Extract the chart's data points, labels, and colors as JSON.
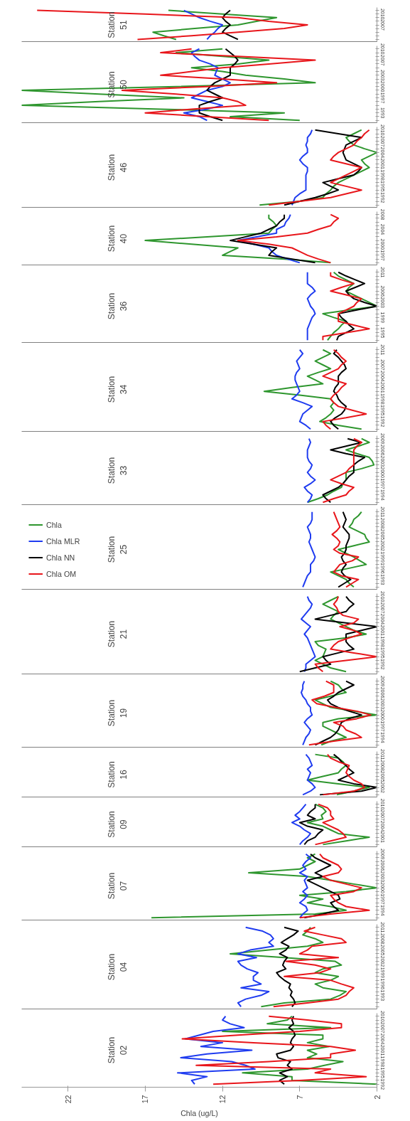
{
  "chart_data": [
    {
      "type": "line",
      "orientation": "horizontal",
      "annotations": [
        "Station 51"
      ],
      "xlim": [
        25,
        2
      ],
      "tick_labels": "y",
      "categories": [
        null,
        "2010",
        null,
        null,
        "2007",
        null,
        null,
        null,
        null
      ],
      "series": [
        {
          "color": "#2e962e",
          "values": [
            15.5,
            12.0,
            8.5,
            9.8,
            11.0,
            13.8,
            16.5,
            15.8,
            15.0
          ]
        },
        {
          "color": "#1f3cf0",
          "values": [
            14.5,
            14.0,
            13.5,
            12.8,
            12.0,
            12.3,
            12.5,
            12.8,
            13.0
          ]
        },
        {
          "color": "#000000",
          "values": [
            11.5,
            11.8,
            12.0,
            11.8,
            11.5,
            11.8,
            12.0,
            11.5,
            11.0
          ]
        },
        {
          "color": "#e8161b",
          "values": [
            24.0,
            17.0,
            11.0,
            9.0,
            6.5,
            8.0,
            11.0,
            14.0,
            17.5
          ]
        }
      ]
    },
    {
      "type": "line",
      "orientation": "horizontal",
      "annotations": [
        "Station 50"
      ],
      "xlim": [
        25,
        2
      ],
      "tick_labels": "y",
      "categories": [
        "2010",
        null,
        null,
        "2007",
        null,
        null,
        null,
        "2003",
        null,
        null,
        "2000",
        null,
        null,
        "1997",
        null,
        null,
        null,
        "1993",
        null,
        null
      ],
      "series": [
        {
          "color": "#2e962e",
          "values": [
            12.0,
            15.0,
            12.0,
            9.0,
            11.0,
            14.0,
            12.0,
            10.5,
            8.0,
            6.0,
            15.0,
            25.0,
            20.0,
            14.5,
            20.0,
            25.0,
            16.0,
            8.0,
            11.5,
            7.0
          ]
        },
        {
          "color": "#1f3cf0",
          "values": [
            13.5,
            14.0,
            13.8,
            13.5,
            12.8,
            12.3,
            12.4,
            12.5,
            12.0,
            11.5,
            12.0,
            13.0,
            13.5,
            14.0,
            13.0,
            12.0,
            13.0,
            14.5,
            13.5,
            13.0
          ]
        },
        {
          "color": "#000000",
          "values": [
            11.8,
            11.5,
            11.2,
            11.0,
            11.2,
            11.5,
            11.5,
            11.5,
            12.0,
            12.5,
            12.8,
            13.0,
            12.5,
            12.0,
            12.8,
            13.5,
            13.5,
            13.5,
            12.8,
            12.0
          ]
        },
        {
          "color": "#e8161b",
          "values": [
            14.0,
            16.0,
            11.0,
            6.0,
            9.0,
            12.0,
            14.0,
            16.0,
            12.0,
            8.5,
            13.0,
            18.5,
            15.0,
            12.0,
            11.0,
            10.5,
            14.0,
            17.0,
            13.0,
            9.0
          ]
        }
      ]
    },
    {
      "type": "line",
      "orientation": "horizontal",
      "annotations": [
        "Station 46"
      ],
      "xlim": [
        25,
        2
      ],
      "tick_labels": "y",
      "categories": [
        "2010",
        null,
        null,
        "2007",
        null,
        null,
        "2004",
        null,
        null,
        "2001",
        null,
        null,
        "1998",
        null,
        null,
        "1995",
        null,
        null,
        "1992",
        null,
        null
      ],
      "series": [
        {
          "color": "#2e962e",
          "values": [
            3.0,
            3.5,
            4.0,
            3.8,
            3.5,
            2.8,
            2.0,
            2.5,
            3.0,
            2.8,
            2.5,
            3.0,
            3.5,
            4.0,
            4.5,
            4.8,
            5.0,
            5.3,
            5.5,
            7.0,
            9.6
          ]
        },
        {
          "color": "#1f3cf0",
          "values": [
            6.2,
            6.3,
            6.5,
            6.5,
            6.6,
            6.5,
            6.5,
            6.8,
            7.0,
            6.8,
            6.5,
            6.5,
            6.6,
            6.6,
            6.6,
            6.6,
            6.6,
            7.0,
            7.3,
            7.4,
            7.5
          ]
        },
        {
          "color": "#000000",
          "values": [
            6.0,
            4.5,
            3.0,
            3.5,
            4.0,
            4.1,
            4.2,
            4.1,
            4.0,
            3.5,
            3.0,
            3.2,
            3.5,
            4.5,
            5.5,
            5.0,
            4.5,
            5.2,
            6.0,
            7.0,
            8.0
          ]
        },
        {
          "color": "#e8161b",
          "values": [
            2.5,
            2.8,
            3.0,
            3.3,
            3.5,
            4.0,
            4.5,
            4.8,
            5.0,
            4.0,
            3.0,
            3.5,
            4.0,
            4.5,
            5.0,
            4.0,
            3.0,
            4.0,
            5.0,
            7.0,
            9.0
          ]
        }
      ]
    },
    {
      "type": "line",
      "orientation": "horizontal",
      "annotations": [
        "Station 40"
      ],
      "xlim": [
        25,
        2
      ],
      "tick_labels": "y",
      "categories": [
        "2008",
        null,
        null,
        null,
        "2004",
        null,
        null,
        null,
        "2000",
        null,
        null,
        "1997",
        null,
        null
      ],
      "series": [
        {
          "color": "#2e962e",
          "values": [
            9.0,
            9.0,
            8.7,
            8.5,
            8.8,
            9.0,
            13.0,
            17.0,
            14.0,
            11.0,
            11.5,
            12.0,
            8.0,
            5.0
          ]
        },
        {
          "color": "#1f3cf0",
          "values": [
            7.6,
            7.7,
            7.9,
            8.0,
            8.5,
            8.5,
            9.8,
            11.0,
            10.0,
            9.0,
            8.8,
            8.5,
            7.8,
            7.0
          ]
        },
        {
          "color": "#000000",
          "values": [
            8.0,
            8.0,
            8.3,
            8.5,
            9.0,
            9.5,
            10.5,
            11.5,
            10.0,
            8.5,
            8.8,
            9.0,
            7.5,
            6.0
          ]
        },
        {
          "color": "#e8161b",
          "values": [
            5.0,
            4.5,
            4.8,
            5.0,
            5.8,
            6.5,
            8.5,
            11.0,
            9.0,
            7.5,
            7.0,
            6.5,
            5.8,
            5.0
          ]
        }
      ]
    },
    {
      "type": "line",
      "orientation": "horizontal",
      "annotations": [
        "Station 36"
      ],
      "xlim": [
        25,
        2
      ],
      "tick_labels": "y",
      "categories": [
        "2011",
        null,
        null,
        null,
        null,
        "2006",
        null,
        null,
        "2003",
        null,
        null,
        null,
        "1999",
        null,
        null,
        null,
        "1995",
        null,
        null
      ],
      "series": [
        {
          "color": "#2e962e",
          "values": [
            4.8,
            4.5,
            4.0,
            3.5,
            3.8,
            4.0,
            3.5,
            3.0,
            2.5,
            2.0,
            3.8,
            5.5,
            4.8,
            4.0,
            4.3,
            4.5,
            4.8,
            5.0,
            5.2
          ]
        },
        {
          "color": "#1f3cf0",
          "values": [
            6.5,
            6.5,
            6.5,
            6.5,
            6.2,
            6.0,
            6.3,
            6.5,
            6.4,
            6.3,
            6.1,
            6.0,
            6.2,
            6.3,
            6.4,
            6.5,
            6.5,
            6.5,
            6.5
          ]
        },
        {
          "color": "#000000",
          "values": [
            4.5,
            4.0,
            3.4,
            2.8,
            3.4,
            4.0,
            3.8,
            3.5,
            2.8,
            2.0,
            3.3,
            4.5,
            4.3,
            4.0,
            3.8,
            3.5,
            4.0,
            4.5,
            4.6
          ]
        },
        {
          "color": "#e8161b",
          "values": [
            5.0,
            5.0,
            4.3,
            3.5,
            4.3,
            5.0,
            4.0,
            3.0,
            3.3,
            3.5,
            4.0,
            4.5,
            4.5,
            4.5,
            3.5,
            2.5,
            4.0,
            5.5,
            5.5
          ]
        }
      ]
    },
    {
      "type": "line",
      "orientation": "horizontal",
      "annotations": [
        "Station 34"
      ],
      "xlim": [
        25,
        2
      ],
      "tick_labels": "y",
      "categories": [
        "2011",
        null,
        null,
        null,
        "2007",
        null,
        null,
        "2004",
        null,
        null,
        "2001",
        null,
        null,
        "1998",
        null,
        null,
        "1995",
        null,
        null,
        "1992",
        null,
        null
      ],
      "series": [
        {
          "color": "#2e962e",
          "values": [
            5.5,
            5.0,
            5.5,
            6.0,
            5.5,
            5.0,
            5.8,
            6.5,
            6.0,
            5.5,
            7.5,
            9.3,
            7.0,
            5.0,
            4.8,
            5.0,
            4.8,
            5.0,
            5.3,
            5.7,
            4.5,
            3.0
          ]
        },
        {
          "color": "#1f3cf0",
          "values": [
            7.0,
            6.8,
            7.0,
            7.2,
            7.1,
            7.0,
            7.2,
            7.3,
            7.3,
            7.2,
            7.1,
            7.0,
            7.2,
            7.5,
            6.8,
            6.2,
            6.5,
            6.8,
            6.9,
            7.0,
            6.6,
            6.3
          ]
        },
        {
          "color": "#000000",
          "values": [
            4.6,
            4.8,
            4.5,
            4.3,
            4.1,
            4.0,
            4.3,
            4.5,
            4.5,
            4.5,
            4.7,
            4.8,
            4.6,
            4.5,
            4.3,
            4.0,
            4.1,
            4.3,
            4.7,
            5.0,
            4.8,
            4.5
          ]
        },
        {
          "color": "#e8161b",
          "values": [
            4.8,
            4.5,
            4.3,
            4.0,
            4.3,
            4.5,
            5.0,
            5.5,
            4.8,
            4.0,
            4.3,
            4.5,
            4.8,
            5.0,
            4.8,
            4.5,
            3.6,
            2.7,
            4.0,
            5.5,
            5.3,
            5.0
          ]
        }
      ]
    },
    {
      "type": "line",
      "orientation": "horizontal",
      "annotations": [
        "Station 33"
      ],
      "xlim": [
        25,
        2
      ],
      "tick_labels": "y",
      "categories": [
        "2009",
        null,
        null,
        "2006",
        null,
        null,
        "2003",
        null,
        null,
        "2000",
        null,
        null,
        "1997",
        null,
        null,
        "1994",
        null,
        null
      ],
      "series": [
        {
          "color": "#2e962e",
          "values": [
            3.0,
            2.5,
            3.2,
            4.0,
            3.3,
            2.5,
            2.3,
            2.2,
            3.0,
            4.0,
            4.0,
            4.0,
            4.2,
            4.3,
            4.8,
            5.2,
            5.8,
            6.5
          ]
        },
        {
          "color": "#1f3cf0",
          "values": [
            6.4,
            6.3,
            6.4,
            6.5,
            6.5,
            6.5,
            6.4,
            6.2,
            6.3,
            6.5,
            6.3,
            6.0,
            6.3,
            6.7,
            6.5,
            6.2,
            6.3,
            6.5
          ]
        },
        {
          "color": "#000000",
          "values": [
            3.9,
            3.0,
            4.0,
            5.0,
            4.0,
            2.8,
            3.2,
            3.5,
            3.5,
            3.5,
            3.8,
            4.0,
            4.2,
            4.5,
            5.0,
            5.5,
            5.3,
            5.0
          ]
        },
        {
          "color": "#e8161b",
          "values": [
            3.5,
            3.0,
            3.3,
            3.5,
            3.5,
            3.5,
            3.5,
            3.5,
            3.8,
            4.0,
            4.5,
            5.0,
            4.3,
            3.5,
            3.8,
            4.0,
            4.8,
            5.5
          ]
        }
      ]
    },
    {
      "type": "line",
      "orientation": "horizontal",
      "annotations": [
        "Station 25"
      ],
      "xlim": [
        25,
        2
      ],
      "tick_labels": "y",
      "legend": "left",
      "categories": [
        "2011",
        null,
        null,
        "2008",
        null,
        null,
        "2005",
        null,
        null,
        "2002",
        null,
        null,
        "1999",
        null,
        null,
        "1996",
        null,
        null,
        "1993",
        null,
        null
      ],
      "series": [
        {
          "name": "Chla",
          "color": "#2e962e",
          "values": [
            3.0,
            3.2,
            3.5,
            3.6,
            3.8,
            3.3,
            2.8,
            2.7,
            2.5,
            3.5,
            4.5,
            4.0,
            3.5,
            3.1,
            2.7,
            3.8,
            5.0,
            4.5,
            4.0,
            3.8,
            3.5
          ]
        },
        {
          "name": "Chla MLR",
          "color": "#1f3cf0",
          "values": [
            6.2,
            6.2,
            6.2,
            6.3,
            6.5,
            6.4,
            6.3,
            6.3,
            6.4,
            6.3,
            6.2,
            6.1,
            6.0,
            6.1,
            6.3,
            6.3,
            6.3,
            6.5,
            6.6,
            6.7,
            6.8
          ]
        },
        {
          "name": "Chla NN",
          "color": "#000000",
          "values": [
            4.2,
            4.1,
            4.0,
            4.1,
            4.2,
            4.0,
            3.8,
            3.8,
            3.9,
            4.0,
            4.0,
            4.1,
            4.3,
            4.2,
            4.0,
            4.2,
            4.3,
            4.1,
            3.7,
            4.1,
            4.5
          ]
        },
        {
          "name": "Chla OM",
          "color": "#e8161b",
          "values": [
            4.8,
            4.7,
            4.6,
            4.5,
            4.4,
            4.6,
            4.9,
            4.6,
            4.4,
            4.5,
            4.8,
            4.4,
            3.2,
            3.6,
            4.4,
            4.6,
            4.8,
            4.3,
            3.2,
            3.6,
            4.0
          ]
        }
      ]
    },
    {
      "type": "line",
      "orientation": "horizontal",
      "annotations": [
        "Station 21"
      ],
      "xlim": [
        25,
        2
      ],
      "tick_labels": "y",
      "categories": [
        "2010",
        null,
        null,
        "2007",
        null,
        null,
        "2004",
        null,
        null,
        "2001",
        null,
        null,
        "1998",
        null,
        null,
        "1995",
        null,
        null,
        "1992",
        null,
        null
      ],
      "series": [
        {
          "color": "#2e962e",
          "values": [
            4.5,
            5.0,
            5.5,
            5.0,
            4.5,
            4.8,
            5.0,
            4.5,
            4.0,
            3.5,
            2.7,
            4.0,
            6.0,
            5.8,
            5.3,
            5.4,
            5.5,
            6.0,
            5.5,
            5.0,
            4.0
          ]
        },
        {
          "color": "#1f3cf0",
          "values": [
            6.5,
            6.4,
            6.2,
            6.3,
            6.5,
            6.7,
            6.9,
            6.6,
            6.3,
            6.5,
            6.7,
            6.5,
            6.4,
            6.3,
            6.2,
            6.1,
            6.0,
            6.3,
            6.6,
            6.6,
            6.7
          ]
        },
        {
          "color": "#000000",
          "values": [
            4.0,
            3.8,
            3.5,
            3.8,
            4.0,
            5.0,
            6.0,
            4.0,
            2.0,
            3.0,
            4.0,
            4.0,
            4.0,
            3.8,
            3.5,
            4.5,
            5.5,
            5.3,
            5.0,
            6.0,
            7.0
          ]
        },
        {
          "color": "#e8161b",
          "values": [
            4.5,
            4.6,
            4.8,
            4.6,
            4.5,
            4.2,
            3.2,
            3.5,
            4.4,
            3.5,
            3.0,
            3.8,
            4.5,
            4.8,
            5.0,
            3.5,
            2.0,
            4.0,
            6.0,
            5.8,
            5.5
          ]
        }
      ]
    },
    {
      "type": "line",
      "orientation": "horizontal",
      "annotations": [
        "Station 19"
      ],
      "xlim": [
        25,
        2
      ],
      "tick_labels": "y",
      "categories": [
        "2009",
        null,
        null,
        "2006",
        null,
        null,
        "2003",
        null,
        null,
        "2000",
        null,
        null,
        "1997",
        null,
        null,
        "1994",
        null,
        null
      ],
      "series": [
        {
          "color": "#2e962e",
          "values": [
            5.0,
            4.5,
            4.3,
            4.0,
            5.0,
            6.0,
            5.5,
            5.0,
            3.5,
            2.0,
            4.5,
            5.5,
            5.5,
            5.0,
            4.5,
            4.0,
            5.0,
            5.6
          ]
        },
        {
          "color": "#1f3cf0",
          "values": [
            6.7,
            6.8,
            6.8,
            6.9,
            6.8,
            6.6,
            6.5,
            6.3,
            6.3,
            6.2,
            6.5,
            6.7,
            6.5,
            6.3,
            6.4,
            6.6,
            6.7,
            6.8
          ]
        },
        {
          "color": "#000000",
          "values": [
            4.0,
            3.5,
            4.0,
            4.5,
            4.8,
            5.2,
            5.0,
            4.5,
            3.8,
            3.0,
            3.8,
            4.3,
            4.4,
            4.5,
            4.7,
            5.0,
            5.5,
            6.0
          ]
        },
        {
          "color": "#e8161b",
          "values": [
            5.3,
            4.8,
            4.8,
            4.8,
            5.4,
            6.2,
            5.9,
            4.7,
            3.3,
            2.4,
            3.3,
            4.8,
            4.2,
            4.0,
            3.4,
            3.0,
            4.8,
            6.4
          ]
        }
      ]
    },
    {
      "type": "line",
      "orientation": "horizontal",
      "annotations": [
        "Station 16"
      ],
      "xlim": [
        25,
        2
      ],
      "tick_labels": "y",
      "categories": [
        "2011",
        null,
        null,
        "2008",
        null,
        null,
        "2005",
        null,
        null,
        "2002",
        null,
        null
      ],
      "series": [
        {
          "color": "#2e962e",
          "values": [
            6.0,
            4.5,
            4.2,
            4.0,
            4.3,
            4.5,
            5.5,
            6.5,
            4.5,
            2.5,
            3.5,
            4.6
          ]
        },
        {
          "color": "#1f3cf0",
          "values": [
            6.6,
            6.4,
            6.3,
            6.2,
            6.5,
            6.3,
            6.4,
            6.5,
            6.2,
            6.0,
            6.3,
            6.8
          ]
        },
        {
          "color": "#000000",
          "values": [
            4.8,
            4.5,
            4.3,
            4.0,
            3.8,
            3.5,
            4.0,
            4.5,
            3.5,
            2.0,
            3.0,
            5.7
          ]
        },
        {
          "color": "#e8161b",
          "values": [
            5.2,
            5.0,
            4.5,
            3.8,
            3.9,
            4.0,
            3.8,
            3.5,
            3.0,
            2.8,
            3.5,
            5.5
          ]
        }
      ]
    },
    {
      "type": "line",
      "orientation": "horizontal",
      "annotations": [
        "Station 09"
      ],
      "xlim": [
        25,
        2
      ],
      "tick_labels": "y",
      "categories": [
        "2010",
        null,
        null,
        "2007",
        null,
        null,
        "2004",
        null,
        null,
        "2001",
        null,
        null
      ],
      "series": [
        {
          "color": "#2e962e",
          "values": [
            6.0,
            5.5,
            5.3,
            5.6,
            5.5,
            6.5,
            5.5,
            5.0,
            4.5,
            2.5,
            4.0,
            5.5
          ]
        },
        {
          "color": "#1f3cf0",
          "values": [
            6.6,
            6.8,
            7.0,
            7.3,
            7.0,
            7.5,
            7.0,
            6.7,
            6.3,
            6.5,
            6.8,
            7.0
          ]
        },
        {
          "color": "#000000",
          "values": [
            6.0,
            6.0,
            6.3,
            6.5,
            6.0,
            7.0,
            6.5,
            5.5,
            5.8,
            6.0,
            6.5,
            6.7
          ]
        },
        {
          "color": "#e8161b",
          "values": [
            5.8,
            5.2,
            5.0,
            5.0,
            4.8,
            5.5,
            5.0,
            4.5,
            4.2,
            4.0,
            5.0,
            6.0
          ]
        }
      ]
    },
    {
      "type": "line",
      "orientation": "horizontal",
      "annotations": [
        "Station 07"
      ],
      "xlim": [
        25,
        2
      ],
      "tick_labels": "y",
      "categories": [
        "2009",
        null,
        null,
        "2006",
        null,
        null,
        "2003",
        null,
        null,
        "2000",
        null,
        null,
        "1997",
        null,
        null,
        "1994",
        null,
        null
      ],
      "series": [
        {
          "color": "#2e962e",
          "values": [
            6.0,
            6.5,
            6.0,
            6.5,
            7.0,
            10.3,
            6.5,
            5.0,
            3.5,
            2.0,
            4.0,
            7.0,
            5.5,
            6.5,
            5.0,
            4.0,
            6.0,
            16.6
          ]
        },
        {
          "color": "#1f3cf0",
          "values": [
            6.6,
            6.3,
            6.6,
            6.8,
            6.6,
            7.0,
            6.5,
            6.7,
            6.6,
            6.5,
            6.8,
            6.5,
            6.7,
            7.0,
            6.6,
            6.5,
            6.8,
            7.0
          ]
        },
        {
          "color": "#000000",
          "values": [
            6.3,
            6.0,
            5.5,
            5.0,
            5.5,
            6.0,
            5.5,
            6.5,
            6.0,
            5.5,
            5.0,
            4.5,
            4.4,
            5.0,
            4.8,
            4.5,
            5.5,
            6.7
          ]
        },
        {
          "color": "#e8161b",
          "values": [
            5.7,
            5.5,
            5.0,
            4.5,
            4.3,
            4.5,
            5.5,
            5.0,
            4.0,
            3.0,
            3.5,
            5.0,
            4.8,
            4.5,
            4.0,
            2.5,
            5.0,
            7.0
          ]
        }
      ]
    },
    {
      "type": "line",
      "orientation": "horizontal",
      "annotations": [
        "Station 04"
      ],
      "xlim": [
        25,
        2
      ],
      "tick_labels": "y",
      "categories": [
        "2011",
        null,
        null,
        "2008",
        null,
        null,
        "2005",
        null,
        null,
        "2002",
        null,
        null,
        "1999",
        null,
        null,
        "1996",
        null,
        null,
        "1993",
        null,
        null,
        null
      ],
      "series": [
        {
          "color": "#2e962e",
          "values": [
            6.3,
            6.5,
            6.8,
            6.0,
            5.5,
            6.5,
            9.0,
            11.5,
            8.0,
            4.7,
            4.3,
            5.5,
            6.0,
            4.5,
            5.0,
            6.0,
            5.5,
            4.0,
            4.4,
            5.0,
            8.0,
            9.5
          ]
        },
        {
          "color": "#1f3cf0",
          "values": [
            10.5,
            9.4,
            8.9,
            8.7,
            9.0,
            8.7,
            10.2,
            11.0,
            9.8,
            11.0,
            10.8,
            10.4,
            9.7,
            10.0,
            10.0,
            9.5,
            10.8,
            9.0,
            9.5,
            10.5,
            11.0,
            10.8
          ]
        },
        {
          "color": "#000000",
          "values": [
            8.0,
            7.1,
            7.4,
            7.8,
            8.2,
            7.7,
            7.9,
            8.3,
            7.8,
            8.0,
            8.1,
            7.9,
            8.5,
            8.3,
            8.0,
            7.6,
            7.7,
            7.5,
            7.6,
            7.4,
            7.3,
            7.5
          ]
        },
        {
          "color": "#e8161b",
          "values": [
            6.0,
            6.7,
            5.5,
            4.3,
            4.0,
            6.2,
            6.5,
            7.0,
            4.5,
            7.9,
            6.0,
            5.0,
            5.7,
            8.0,
            5.0,
            4.3,
            3.5,
            3.8,
            4.0,
            4.5,
            6.5,
            8.7
          ]
        }
      ]
    },
    {
      "type": "line",
      "orientation": "horizontal",
      "annotations": [
        "Station 02"
      ],
      "xlim": [
        25,
        2
      ],
      "xticks": [
        22,
        17,
        12,
        7,
        2
      ],
      "xlabel": "Chla (ug/L)",
      "categories": [
        "2010",
        null,
        null,
        "2007",
        null,
        null,
        "2004",
        null,
        null,
        "2001",
        null,
        null,
        "1998",
        null,
        null,
        "1995",
        null,
        null,
        "1992"
      ],
      "series": [
        {
          "color": "#2e962e",
          "values": [
            7.5,
            7.8,
            9.1,
            5.0,
            12.0,
            5.5,
            5.5,
            6.5,
            5.1,
            6.5,
            5.9,
            6.5,
            4.2,
            5.4,
            6.5,
            10.7,
            7.5,
            7.5,
            2.0
          ]
        },
        {
          "color": "#1f3cf0",
          "values": [
            11.8,
            12.0,
            11.5,
            10.6,
            12.6,
            13.5,
            14.4,
            12.0,
            13.4,
            10.1,
            13.0,
            14.7,
            11.4,
            10.5,
            9.9,
            14.9,
            13.0,
            14.0,
            13.8
          ]
        },
        {
          "color": "#000000",
          "values": [
            7.4,
            7.5,
            7.4,
            7.7,
            7.4,
            7.3,
            7.5,
            7.6,
            7.4,
            7.6,
            8.5,
            8.4,
            7.6,
            7.8,
            7.5,
            8.3,
            7.8,
            8.3,
            8.0
          ]
        },
        {
          "color": "#e8161b",
          "values": [
            9.0,
            6.5,
            4.3,
            4.3,
            7.0,
            11.0,
            14.6,
            10.0,
            5.0,
            3.4,
            5.0,
            5.0,
            9.0,
            13.7,
            5.0,
            6.0,
            2.7,
            7.0,
            12.6
          ]
        }
      ]
    }
  ]
}
